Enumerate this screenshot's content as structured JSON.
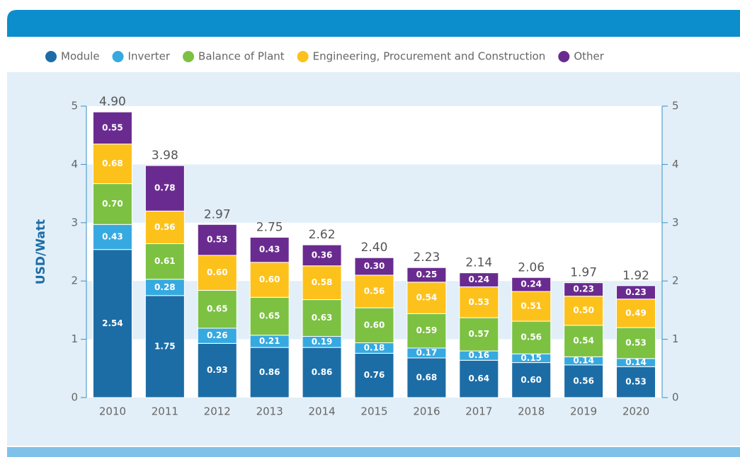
{
  "chart_data": {
    "type": "stacked_bar",
    "y_label": "USD/Watt",
    "categories": [
      "2010",
      "2011",
      "2012",
      "2013",
      "2014",
      "2015",
      "2016",
      "2017",
      "2018",
      "2019",
      "2020"
    ],
    "series": [
      {
        "name": "Module",
        "color": "#1c6da6",
        "values": [
          2.54,
          1.75,
          0.93,
          0.86,
          0.86,
          0.76,
          0.68,
          0.64,
          0.6,
          0.56,
          0.53
        ],
        "value_labels": [
          "2.54",
          "1.75",
          "0.93",
          "0.86",
          "0.86",
          "0.76",
          "0.68",
          "0.64",
          "0.60",
          "0.56",
          "0.53"
        ]
      },
      {
        "name": "Inverter",
        "color": "#36a9e1",
        "values": [
          0.43,
          0.28,
          0.26,
          0.21,
          0.19,
          0.18,
          0.17,
          0.16,
          0.15,
          0.14,
          0.14
        ],
        "value_labels": [
          "0.43",
          "0.28",
          "0.26",
          "0.21",
          "0.19",
          "0.18",
          "0.17",
          "0.16",
          "0.15",
          "0.14",
          "0.14"
        ]
      },
      {
        "name": "Balance of Plant",
        "color": "#7cc142",
        "values": [
          0.7,
          0.61,
          0.65,
          0.65,
          0.63,
          0.6,
          0.59,
          0.57,
          0.56,
          0.54,
          0.53
        ],
        "value_labels": [
          "0.70",
          "0.61",
          "0.65",
          "0.65",
          "0.63",
          "0.60",
          "0.59",
          "0.57",
          "0.56",
          "0.54",
          "0.53"
        ]
      },
      {
        "name": "Engineering, Procurement and Construction",
        "color": "#fdc11c",
        "values": [
          0.68,
          0.56,
          0.6,
          0.6,
          0.58,
          0.56,
          0.54,
          0.53,
          0.51,
          0.5,
          0.49
        ],
        "value_labels": [
          "0.68",
          "0.56",
          "0.60",
          "0.60",
          "0.58",
          "0.56",
          "0.54",
          "0.53",
          "0.51",
          "0.50",
          "0.49"
        ]
      },
      {
        "name": "Other",
        "color": "#6a2b90",
        "values": [
          0.55,
          0.78,
          0.53,
          0.43,
          0.36,
          0.3,
          0.25,
          0.24,
          0.24,
          0.23,
          0.23
        ],
        "value_labels": [
          "0.55",
          "0.78",
          "0.53",
          "0.43",
          "0.36",
          "0.30",
          "0.25",
          "0.24",
          "0.24",
          "0.23",
          "0.23"
        ]
      }
    ],
    "totals": {
      "values": [
        4.9,
        3.98,
        2.97,
        2.75,
        2.62,
        2.4,
        2.23,
        2.14,
        2.06,
        1.97,
        1.92
      ],
      "value_labels": [
        "4.90",
        "3.98",
        "2.97",
        "2.75",
        "2.62",
        "2.40",
        "2.23",
        "2.14",
        "2.06",
        "1.97",
        "1.92"
      ]
    },
    "ylim": [
      0,
      5
    ],
    "yticks": [
      0,
      1,
      2,
      3,
      4,
      5
    ],
    "y2lim": [
      0,
      5
    ],
    "y2ticks": [
      0,
      1,
      2,
      3,
      4,
      5
    ],
    "grid": "bands",
    "legend": "top"
  }
}
